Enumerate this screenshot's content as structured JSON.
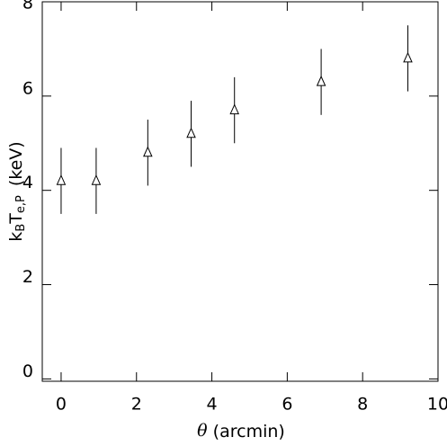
{
  "chart_data": {
    "type": "scatter",
    "x": [
      0,
      0.93,
      2.3,
      3.45,
      4.6,
      6.9,
      9.2
    ],
    "series": [
      {
        "values": [
          4.2,
          4.2,
          4.8,
          5.2,
          5.7,
          6.3,
          6.8
        ],
        "errors": [
          0.7,
          0.7,
          0.7,
          0.7,
          0.7,
          0.7,
          0.7
        ],
        "color": "#000000",
        "marker": "triangle"
      }
    ],
    "xlim": [
      -0.5,
      10
    ],
    "ylim": [
      -0.05,
      8
    ],
    "xticks": [
      0,
      2,
      4,
      6,
      8,
      10
    ],
    "yticks": [
      0,
      2,
      4,
      6,
      8
    ],
    "xlabel": [
      "θ",
      "(arcmin)"
    ],
    "ylabel": [
      "k",
      "B",
      "T",
      "e,P",
      "(keV)"
    ]
  }
}
